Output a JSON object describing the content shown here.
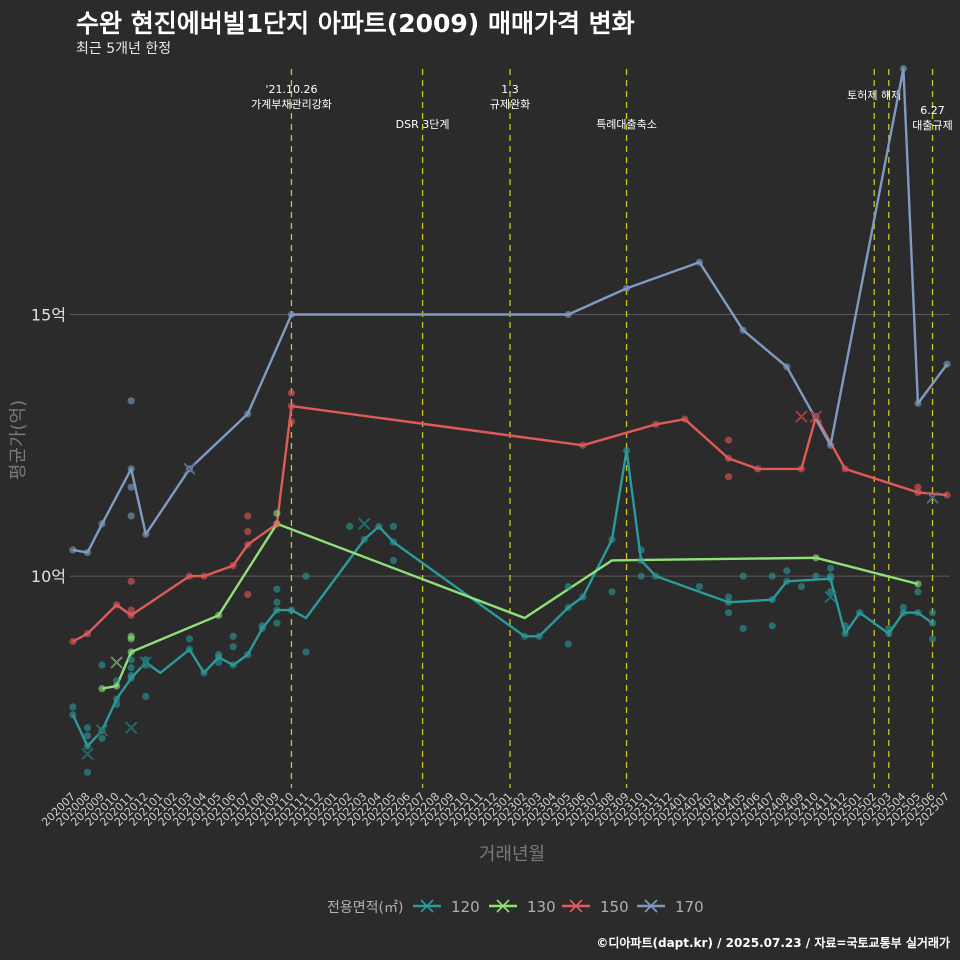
{
  "title": "수완 현진에버빌1단지 아파트(2009) 매매가격 변화",
  "subtitle": "최근 5개년 한정",
  "caption": "©디아파트(dapt.kr) / 2025.07.23 / 자료=국토교통부 실거래가",
  "chart_data": {
    "type": "line",
    "xlabel": "거래년월",
    "ylabel": "평균가(억)",
    "x_ticks": [
      "202007",
      "202008",
      "202009",
      "202010",
      "202011",
      "202012",
      "202101",
      "202102",
      "202103",
      "202104",
      "202105",
      "202106",
      "202107",
      "202108",
      "202109",
      "202110",
      "202111",
      "202112",
      "202201",
      "202202",
      "202203",
      "202204",
      "202205",
      "202206",
      "202207",
      "202208",
      "202209",
      "202210",
      "202211",
      "202212",
      "202301",
      "202302",
      "202303",
      "202304",
      "202305",
      "202306",
      "202307",
      "202308",
      "202309",
      "202310",
      "202311",
      "202312",
      "202401",
      "202402",
      "202403",
      "202404",
      "202405",
      "202406",
      "202407",
      "202408",
      "202409",
      "202410",
      "202411",
      "202412",
      "202501",
      "202502",
      "202503",
      "202504",
      "202505",
      "202506",
      "202507"
    ],
    "y_ticks": [
      {
        "value": 10,
        "label": "10억"
      },
      {
        "value": 15,
        "label": "15억"
      }
    ],
    "ylim": [
      5.95,
      19.75
    ],
    "grid": "horizontal major only",
    "legend": {
      "title": "전용면적(㎡)",
      "position": "bottom"
    },
    "annotations": [
      {
        "x": "202110",
        "text": "'21.10.26\n가계부채관리강화",
        "row": "upper"
      },
      {
        "x": "202207",
        "text": "DSR 3단계",
        "row": "lower"
      },
      {
        "x": "202301",
        "text": "1.3\n규제완화",
        "row": "upper"
      },
      {
        "x": "202309",
        "text": "특례대출축소",
        "row": "lower"
      },
      {
        "x": "202502",
        "text": "토허제 해제",
        "row": "upper"
      },
      {
        "x": "202503",
        "text": "",
        "row": "upper"
      },
      {
        "x": "202506",
        "text": "6.27\n대출규제",
        "row": "mid"
      }
    ],
    "series": [
      {
        "name": "120",
        "color": "#2a9a9a",
        "line": [
          [
            "202007",
            7.35
          ],
          [
            "202008",
            6.75
          ],
          [
            "202009",
            7.05
          ],
          [
            "202010",
            7.65
          ],
          [
            "202011",
            8.05
          ],
          [
            "202012",
            8.35
          ],
          [
            "202101",
            8.15
          ],
          [
            "202103",
            8.6
          ],
          [
            "202104",
            8.15
          ],
          [
            "202105",
            8.45
          ],
          [
            "202106",
            8.3
          ],
          [
            "202107",
            8.5
          ],
          [
            "202108",
            9.0
          ],
          [
            "202109",
            9.35
          ],
          [
            "202110",
            9.35
          ],
          [
            "202111",
            9.2
          ],
          [
            "202203",
            10.7
          ],
          [
            "202204",
            10.95
          ],
          [
            "202205",
            10.65
          ],
          [
            "202302",
            8.85
          ],
          [
            "202303",
            8.85
          ],
          [
            "202305",
            9.4
          ],
          [
            "202306",
            9.6
          ],
          [
            "202308",
            10.7
          ],
          [
            "202309",
            12.4
          ],
          [
            "202310",
            10.3
          ],
          [
            "202311",
            10.0
          ],
          [
            "202404",
            9.5
          ],
          [
            "202407",
            9.55
          ],
          [
            "202408",
            9.9
          ],
          [
            "202411",
            9.95
          ],
          [
            "202412",
            8.9
          ],
          [
            "202501",
            9.3
          ],
          [
            "202503",
            8.9
          ],
          [
            "202504",
            9.3
          ],
          [
            "202505",
            9.3
          ],
          [
            "202506",
            9.1
          ]
        ],
        "points": [
          [
            "202007",
            7.5
          ],
          [
            "202007",
            7.35
          ],
          [
            "202008",
            6.75
          ],
          [
            "202008",
            6.25
          ],
          [
            "202008",
            7.1
          ],
          [
            "202008",
            6.95
          ],
          [
            "202009",
            8.3
          ],
          [
            "202009",
            6.9
          ],
          [
            "202009",
            7.05
          ],
          [
            "202010",
            7.65
          ],
          [
            "202010",
            7.55
          ],
          [
            "202010",
            8.0
          ],
          [
            "202011",
            8.05
          ],
          [
            "202011",
            8.25
          ],
          [
            "202011",
            8.1
          ],
          [
            "202011",
            8.4
          ],
          [
            "202012",
            7.7
          ],
          [
            "202012",
            8.4
          ],
          [
            "202012",
            8.3
          ],
          [
            "202103",
            8.6
          ],
          [
            "202103",
            8.8
          ],
          [
            "202104",
            8.15
          ],
          [
            "202105",
            8.45
          ],
          [
            "202105",
            8.5
          ],
          [
            "202105",
            8.35
          ],
          [
            "202106",
            8.3
          ],
          [
            "202106",
            8.65
          ],
          [
            "202106",
            8.85
          ],
          [
            "202107",
            8.5
          ],
          [
            "202108",
            9.0
          ],
          [
            "202108",
            9.05
          ],
          [
            "202109",
            9.35
          ],
          [
            "202109",
            9.1
          ],
          [
            "202109",
            9.5
          ],
          [
            "202109",
            9.75
          ],
          [
            "202110",
            9.35
          ],
          [
            "202111",
            8.55
          ],
          [
            "202111",
            10.0
          ],
          [
            "202202",
            10.95
          ],
          [
            "202203",
            10.7
          ],
          [
            "202204",
            10.95
          ],
          [
            "202205",
            10.65
          ],
          [
            "202205",
            10.3
          ],
          [
            "202205",
            10.95
          ],
          [
            "202302",
            8.85
          ],
          [
            "202303",
            8.85
          ],
          [
            "202305",
            9.8
          ],
          [
            "202305",
            8.7
          ],
          [
            "202305",
            9.4
          ],
          [
            "202306",
            9.6
          ],
          [
            "202308",
            10.7
          ],
          [
            "202308",
            9.7
          ],
          [
            "202309",
            12.4
          ],
          [
            "202310",
            10.3
          ],
          [
            "202310",
            10.0
          ],
          [
            "202310",
            10.5
          ],
          [
            "202311",
            10.0
          ],
          [
            "202402",
            9.8
          ],
          [
            "202404",
            9.5
          ],
          [
            "202404",
            9.6
          ],
          [
            "202404",
            9.3
          ],
          [
            "202405",
            10.0
          ],
          [
            "202405",
            9.0
          ],
          [
            "202407",
            9.55
          ],
          [
            "202407",
            9.05
          ],
          [
            "202407",
            10.0
          ],
          [
            "202408",
            9.9
          ],
          [
            "202408",
            10.1
          ],
          [
            "202409",
            9.8
          ],
          [
            "202410",
            10.0
          ],
          [
            "202411",
            9.95
          ],
          [
            "202411",
            10.15
          ],
          [
            "202411",
            10.0
          ],
          [
            "202411",
            9.7
          ],
          [
            "202412",
            8.9
          ],
          [
            "202412",
            9.05
          ],
          [
            "202501",
            9.3
          ],
          [
            "202503",
            8.9
          ],
          [
            "202503",
            9.0
          ],
          [
            "202504",
            9.3
          ],
          [
            "202504",
            9.4
          ],
          [
            "202505",
            9.3
          ],
          [
            "202505",
            9.7
          ],
          [
            "202506",
            9.1
          ],
          [
            "202506",
            9.3
          ],
          [
            "202506",
            8.8
          ]
        ],
        "cancelled": [
          [
            "202008",
            6.6
          ],
          [
            "202009",
            7.05
          ],
          [
            "202011",
            7.1
          ],
          [
            "202012",
            8.35
          ],
          [
            "202203",
            11.0
          ],
          [
            "202411",
            9.6
          ]
        ]
      },
      {
        "name": "130",
        "color": "#90e07a",
        "line": [
          [
            "202009",
            7.85
          ],
          [
            "202010",
            7.9
          ],
          [
            "202011",
            8.55
          ],
          [
            "202105",
            9.25
          ],
          [
            "202109",
            11.0
          ],
          [
            "202302",
            9.2
          ],
          [
            "202308",
            10.3
          ],
          [
            "202410",
            10.35
          ],
          [
            "202505",
            9.85
          ]
        ],
        "points": [
          [
            "202009",
            7.85
          ],
          [
            "202010",
            7.9
          ],
          [
            "202011",
            8.55
          ],
          [
            "202011",
            8.8
          ],
          [
            "202011",
            8.85
          ],
          [
            "202105",
            9.25
          ],
          [
            "202109",
            11.0
          ],
          [
            "202109",
            11.2
          ],
          [
            "202410",
            10.35
          ],
          [
            "202505",
            9.85
          ]
        ],
        "cancelled": [
          [
            "202010",
            8.35
          ]
        ]
      },
      {
        "name": "150",
        "color": "#e05a5a",
        "line": [
          [
            "202007",
            8.75
          ],
          [
            "202008",
            8.9
          ],
          [
            "202010",
            9.45
          ],
          [
            "202011",
            9.25
          ],
          [
            "202103",
            10.0
          ],
          [
            "202104",
            10.0
          ],
          [
            "202106",
            10.2
          ],
          [
            "202107",
            10.6
          ],
          [
            "202109",
            11.0
          ],
          [
            "202110",
            13.25
          ],
          [
            "202306",
            12.5
          ],
          [
            "202311",
            12.9
          ],
          [
            "202401",
            13.0
          ],
          [
            "202404",
            12.25
          ],
          [
            "202406",
            12.05
          ],
          [
            "202409",
            12.05
          ],
          [
            "202410",
            13.05
          ],
          [
            "202412",
            12.05
          ],
          [
            "202505",
            11.6
          ],
          [
            "202507",
            11.55
          ]
        ],
        "points": [
          [
            "202007",
            8.75
          ],
          [
            "202008",
            8.9
          ],
          [
            "202010",
            9.45
          ],
          [
            "202011",
            9.25
          ],
          [
            "202011",
            9.9
          ],
          [
            "202011",
            9.35
          ],
          [
            "202103",
            10.0
          ],
          [
            "202104",
            10.0
          ],
          [
            "202106",
            10.2
          ],
          [
            "202107",
            10.6
          ],
          [
            "202107",
            11.15
          ],
          [
            "202107",
            10.85
          ],
          [
            "202107",
            9.65
          ],
          [
            "202109",
            11.0
          ],
          [
            "202110",
            13.25
          ],
          [
            "202110",
            13.5
          ],
          [
            "202110",
            12.95
          ],
          [
            "202306",
            12.5
          ],
          [
            "202311",
            12.9
          ],
          [
            "202401",
            13.0
          ],
          [
            "202404",
            12.25
          ],
          [
            "202404",
            12.6
          ],
          [
            "202404",
            11.9
          ],
          [
            "202406",
            12.05
          ],
          [
            "202409",
            12.05
          ],
          [
            "202410",
            13.05
          ],
          [
            "202412",
            12.05
          ],
          [
            "202505",
            11.6
          ],
          [
            "202505",
            11.7
          ],
          [
            "202507",
            11.55
          ]
        ],
        "cancelled": [
          [
            "202409",
            13.05
          ],
          [
            "202410",
            13.05
          ]
        ]
      },
      {
        "name": "170",
        "color": "#7f9bc2",
        "line": [
          [
            "202007",
            10.5
          ],
          [
            "202008",
            10.45
          ],
          [
            "202009",
            11.0
          ],
          [
            "202011",
            12.05
          ],
          [
            "202012",
            10.8
          ],
          [
            "202103",
            12.05
          ],
          [
            "202107",
            13.1
          ],
          [
            "202110",
            15.0
          ],
          [
            "202305",
            15.0
          ],
          [
            "202309",
            15.5
          ],
          [
            "202402",
            16.0
          ],
          [
            "202405",
            14.7
          ],
          [
            "202408",
            14.0
          ],
          [
            "202411",
            12.5
          ],
          [
            "202504",
            19.7
          ],
          [
            "202505",
            13.3
          ],
          [
            "202507",
            14.05
          ]
        ],
        "points": [
          [
            "202007",
            10.5
          ],
          [
            "202008",
            10.45
          ],
          [
            "202009",
            11.0
          ],
          [
            "202011",
            12.05
          ],
          [
            "202011",
            11.7
          ],
          [
            "202011",
            11.15
          ],
          [
            "202011",
            13.35
          ],
          [
            "202012",
            10.8
          ],
          [
            "202103",
            12.05
          ],
          [
            "202107",
            13.1
          ],
          [
            "202110",
            15.0
          ],
          [
            "202305",
            15.0
          ],
          [
            "202309",
            15.5
          ],
          [
            "202402",
            16.0
          ],
          [
            "202405",
            14.7
          ],
          [
            "202408",
            14.0
          ],
          [
            "202411",
            12.5
          ],
          [
            "202504",
            19.7
          ],
          [
            "202505",
            13.3
          ],
          [
            "202507",
            14.05
          ]
        ],
        "cancelled": [
          [
            "202103",
            12.05
          ],
          [
            "202506",
            11.5
          ]
        ]
      }
    ]
  }
}
